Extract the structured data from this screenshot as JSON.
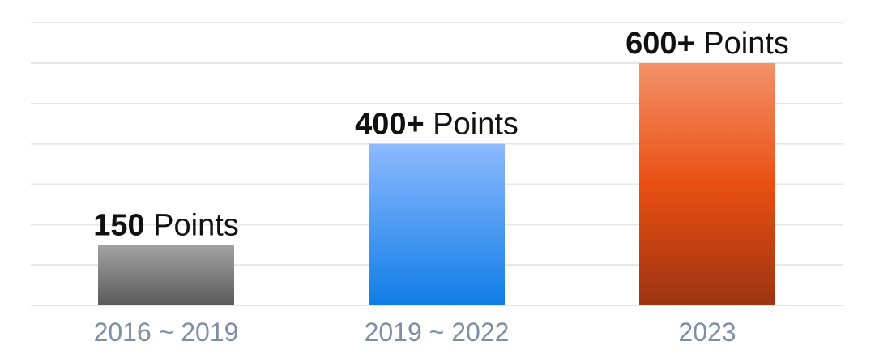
{
  "chart_data": {
    "type": "bar",
    "title": "",
    "xlabel": "",
    "ylabel": "",
    "categories": [
      "2016 ~ 2019",
      "2019 ~ 2022",
      "2023"
    ],
    "values": [
      150,
      400,
      600
    ],
    "ylim": [
      0,
      700
    ],
    "grid": true,
    "data_labels": [
      {
        "value_text": "150",
        "unit_text": "Points"
      },
      {
        "value_text": "400+",
        "unit_text": "Points"
      },
      {
        "value_text": "600+",
        "unit_text": "Points"
      }
    ],
    "bar_colors": [
      {
        "top": "#a3a3a3",
        "bottom": "#5a5a5a"
      },
      {
        "top": "#8eb9ff",
        "bottom": "#0f7de6"
      },
      {
        "top": "#f4926a",
        "mid": "#ea4f12",
        "bottom": "#9c3412"
      }
    ],
    "tick_label_color": "#7d8ea6",
    "grid_color": "#e6e6e6"
  }
}
